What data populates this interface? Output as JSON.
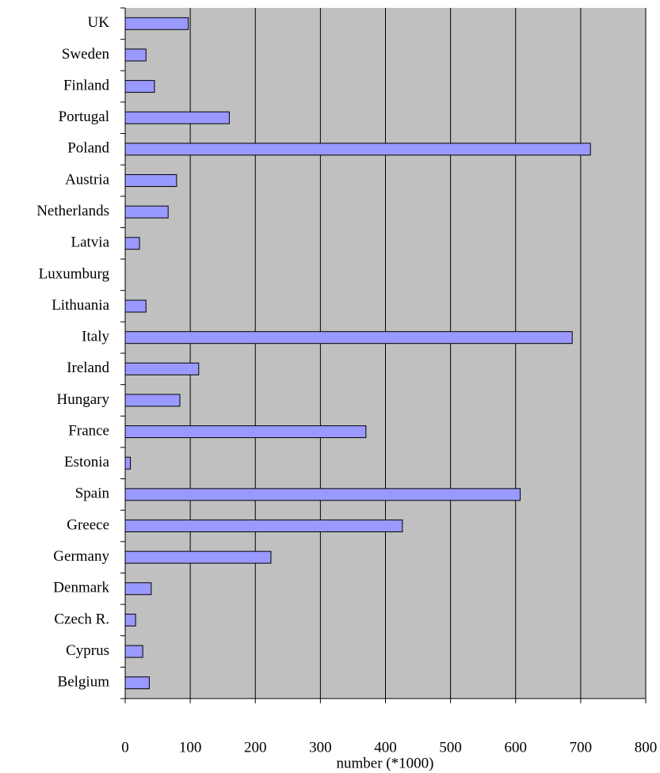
{
  "chart_data": {
    "type": "barh",
    "x_label": "number (*1000)",
    "categories": [
      "UK",
      "Sweden",
      "Finland",
      "Portugal",
      "Poland",
      "Austria",
      "Netherlands",
      "Latvia",
      "Luxumburg",
      "Lithuania",
      "Italy",
      "Ireland",
      "Hungary",
      "France",
      "Estonia",
      "Spain",
      "Greece",
      "Germany",
      "Denmark",
      "Czech R.",
      "Cyprus",
      "Belgium"
    ],
    "values": [
      97,
      32,
      45,
      160,
      715,
      79,
      66,
      22,
      0,
      32,
      687,
      113,
      84,
      370,
      8,
      607,
      426,
      224,
      40,
      16,
      27,
      37
    ],
    "color": "#9999ff",
    "xlim": [
      0,
      800
    ],
    "xticks": [
      0,
      100,
      200,
      300,
      400,
      500,
      600,
      700,
      800
    ],
    "grid": true
  }
}
